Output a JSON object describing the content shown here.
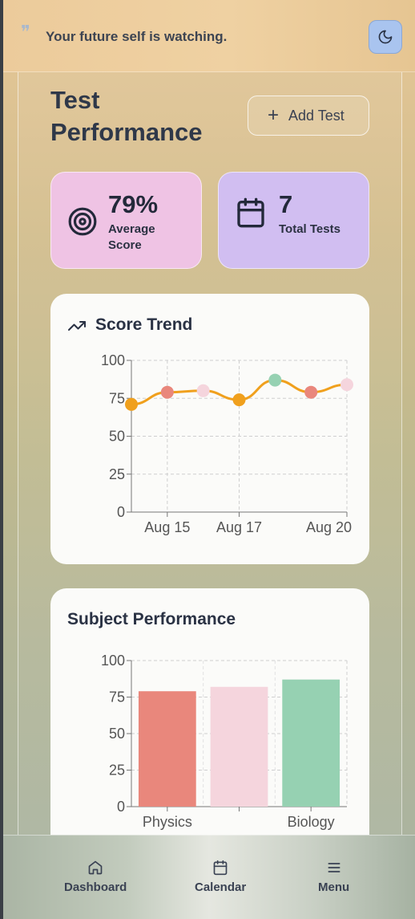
{
  "quote": {
    "text": "Your future self is watching."
  },
  "header": {
    "title": "Test Performance",
    "add_button": "Add Test"
  },
  "stats": {
    "average": {
      "value": "79%",
      "label": "Average Score"
    },
    "total": {
      "value": "7",
      "label": "Total Tests"
    }
  },
  "trend_card": {
    "title": "Score Trend"
  },
  "subject_card": {
    "title": "Subject Performance"
  },
  "nav": {
    "dashboard": "Dashboard",
    "calendar": "Calendar",
    "menu": "Menu"
  },
  "colors": {
    "accent": "#f0a01d",
    "physics": "#e9877c",
    "pink": "#f5d5dd",
    "biology": "#96d1b2"
  },
  "chart_data": [
    {
      "type": "line",
      "title": "Score Trend",
      "x_tick_labels": [
        "Aug 15",
        "Aug 17",
        "Aug 20"
      ],
      "ylim": [
        0,
        100
      ],
      "y_ticks": [
        0,
        25,
        50,
        75,
        100
      ],
      "grid": true,
      "series": [
        {
          "values": [
            71,
            79,
            80,
            74,
            87,
            79,
            84
          ],
          "point_colors": [
            "#f0a01d",
            "#e9877c",
            "#f5d5dd",
            "#f0a01d",
            "#96d1b2",
            "#e9877c",
            "#f5d5dd"
          ]
        }
      ]
    },
    {
      "type": "bar",
      "title": "Subject Performance",
      "categories": [
        "Physics",
        "",
        "Biology"
      ],
      "values": [
        79,
        82,
        87
      ],
      "bar_colors": [
        "#e9877c",
        "#f5d5dd",
        "#96d1b2"
      ],
      "ylim": [
        0,
        100
      ],
      "y_ticks": [
        0,
        25,
        50,
        75,
        100
      ],
      "grid": true
    }
  ]
}
